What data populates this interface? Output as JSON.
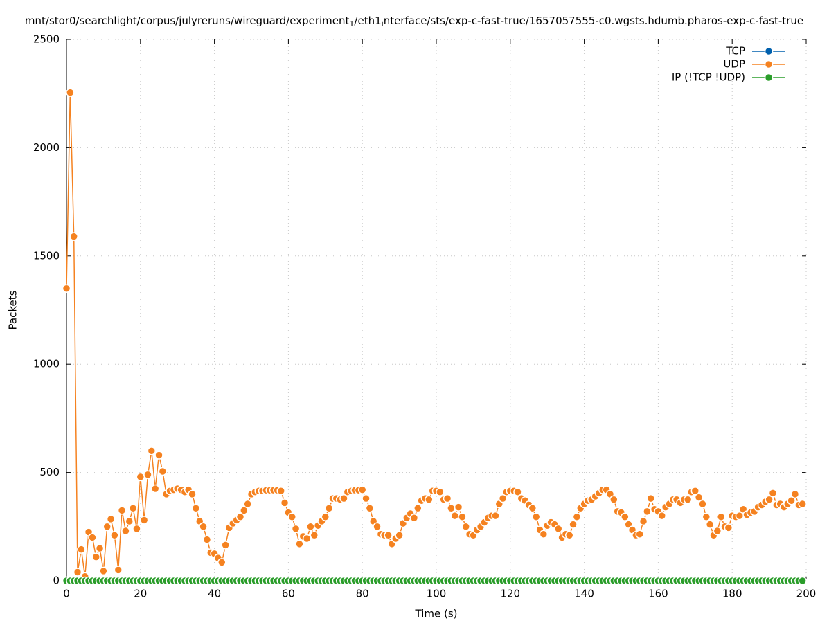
{
  "chart_data": {
    "type": "line",
    "title": [
      "mnt/stor0/searchlight/corpus/julyreruns/wireguard/experiment",
      "1",
      "/eth1",
      "i",
      "nterface/sts/exp-c-fast-true/1657057555-c0.wgsts.hdumb.pharos-exp-c-fast-true"
    ],
    "xlabel": "Time (s)",
    "ylabel": "Packets",
    "xlim": [
      0,
      200
    ],
    "xticks": [
      0,
      20,
      40,
      60,
      80,
      100,
      120,
      140,
      160,
      180,
      200
    ],
    "ylim": [
      0,
      2500
    ],
    "yticks": [
      0,
      500,
      1000,
      1500,
      2000,
      2500
    ],
    "grid": true,
    "legend": "top right",
    "x": [
      0,
      1,
      2,
      3,
      4,
      5,
      6,
      7,
      8,
      9,
      10,
      11,
      12,
      13,
      14,
      15,
      16,
      17,
      18,
      19,
      20,
      21,
      22,
      23,
      24,
      25,
      26,
      27,
      28,
      29,
      30,
      31,
      32,
      33,
      34,
      35,
      36,
      37,
      38,
      39,
      40,
      41,
      42,
      43,
      44,
      45,
      46,
      47,
      48,
      49,
      50,
      51,
      52,
      53,
      54,
      55,
      56,
      57,
      58,
      59,
      60,
      61,
      62,
      63,
      64,
      65,
      66,
      67,
      68,
      69,
      70,
      71,
      72,
      73,
      74,
      75,
      76,
      77,
      78,
      79,
      80,
      81,
      82,
      83,
      84,
      85,
      86,
      87,
      88,
      89,
      90,
      91,
      92,
      93,
      94,
      95,
      96,
      97,
      98,
      99,
      100,
      101,
      102,
      103,
      104,
      105,
      106,
      107,
      108,
      109,
      110,
      111,
      112,
      113,
      114,
      115,
      116,
      117,
      118,
      119,
      120,
      121,
      122,
      123,
      124,
      125,
      126,
      127,
      128,
      129,
      130,
      131,
      132,
      133,
      134,
      135,
      136,
      137,
      138,
      139,
      140,
      141,
      142,
      143,
      144,
      145,
      146,
      147,
      148,
      149,
      150,
      151,
      152,
      153,
      154,
      155,
      156,
      157,
      158,
      159,
      160,
      161,
      162,
      163,
      164,
      165,
      166,
      167,
      168,
      169,
      170,
      171,
      172,
      173,
      174,
      175,
      176,
      177,
      178,
      179,
      180,
      181,
      182,
      183,
      184,
      185,
      186,
      187,
      188,
      189,
      190,
      191,
      192,
      193,
      194,
      195,
      196,
      197,
      198,
      199
    ],
    "series": [
      {
        "name": "TCP",
        "color": "#0060ad",
        "values": [
          0,
          0,
          0,
          0,
          0,
          0,
          0,
          0,
          0,
          0,
          0,
          0,
          0,
          0,
          0,
          0,
          0,
          0,
          0,
          0,
          0,
          0,
          0,
          0,
          0,
          0,
          0,
          0,
          0,
          0,
          0,
          0,
          0,
          0,
          0,
          0,
          0,
          0,
          0,
          0,
          0,
          0,
          0,
          0,
          0,
          0,
          0,
          0,
          0,
          0,
          0,
          0,
          0,
          0,
          0,
          0,
          0,
          0,
          0,
          0,
          0,
          0,
          0,
          0,
          0,
          0,
          0,
          0,
          0,
          0,
          0,
          0,
          0,
          0,
          0,
          0,
          0,
          0,
          0,
          0,
          0,
          0,
          0,
          0,
          0,
          0,
          0,
          0,
          0,
          0,
          0,
          0,
          0,
          0,
          0,
          0,
          0,
          0,
          0,
          0,
          0,
          0,
          0,
          0,
          0,
          0,
          0,
          0,
          0,
          0,
          0,
          0,
          0,
          0,
          0,
          0,
          0,
          0,
          0,
          0,
          0,
          0,
          0,
          0,
          0,
          0,
          0,
          0,
          0,
          0,
          0,
          0,
          0,
          0,
          0,
          0,
          0,
          0,
          0,
          0,
          0,
          0,
          0,
          0,
          0,
          0,
          0,
          0,
          0,
          0,
          0,
          0,
          0,
          0,
          0,
          0,
          0,
          0,
          0,
          0,
          0,
          0,
          0,
          0,
          0,
          0,
          0,
          0,
          0,
          0,
          0,
          0,
          0,
          0,
          0,
          0,
          0,
          0,
          0,
          0,
          0,
          0,
          0,
          0,
          0,
          0,
          0,
          0,
          0,
          0,
          0,
          0,
          0,
          0,
          0,
          0,
          0,
          0,
          0,
          0
        ]
      },
      {
        "name": "UDP",
        "color": "#f58220",
        "values": [
          1350,
          2255,
          1590,
          40,
          145,
          20,
          225,
          200,
          110,
          150,
          45,
          250,
          285,
          210,
          50,
          325,
          230,
          275,
          335,
          240,
          480,
          280,
          490,
          600,
          425,
          580,
          505,
          400,
          415,
          420,
          425,
          420,
          410,
          420,
          400,
          335,
          275,
          250,
          190,
          130,
          125,
          105,
          85,
          165,
          245,
          265,
          280,
          295,
          325,
          355,
          400,
          410,
          415,
          415,
          418,
          418,
          418,
          418,
          415,
          360,
          315,
          295,
          240,
          170,
          205,
          195,
          250,
          210,
          255,
          275,
          295,
          335,
          380,
          380,
          375,
          380,
          410,
          415,
          418,
          418,
          420,
          380,
          335,
          275,
          250,
          215,
          210,
          210,
          170,
          195,
          210,
          265,
          290,
          310,
          290,
          335,
          370,
          380,
          375,
          415,
          415,
          410,
          375,
          380,
          335,
          300,
          340,
          295,
          250,
          215,
          210,
          235,
          250,
          270,
          290,
          300,
          300,
          355,
          380,
          410,
          415,
          415,
          410,
          380,
          370,
          350,
          335,
          295,
          235,
          215,
          255,
          270,
          260,
          240,
          200,
          215,
          210,
          260,
          295,
          335,
          355,
          370,
          375,
          390,
          405,
          420,
          420,
          400,
          375,
          320,
          315,
          295,
          260,
          235,
          210,
          215,
          275,
          320,
          380,
          330,
          320,
          300,
          340,
          355,
          375,
          375,
          360,
          375,
          375,
          410,
          415,
          385,
          355,
          295,
          260,
          210,
          230,
          295,
          250,
          245,
          300,
          295,
          300,
          330,
          305,
          315,
          320,
          340,
          350,
          365,
          375,
          405,
          350,
          355,
          340,
          355,
          370,
          400,
          350,
          355
        ]
      },
      {
        "name": "IP (!TCP  !UDP)",
        "color": "#2a9d2a",
        "values": [
          0,
          0,
          0,
          0,
          0,
          0,
          0,
          0,
          0,
          0,
          0,
          0,
          0,
          0,
          0,
          0,
          0,
          0,
          0,
          0,
          0,
          0,
          0,
          0,
          0,
          0,
          0,
          0,
          0,
          0,
          0,
          0,
          0,
          0,
          0,
          0,
          0,
          0,
          0,
          0,
          0,
          0,
          0,
          0,
          0,
          0,
          0,
          0,
          0,
          0,
          0,
          0,
          0,
          0,
          0,
          0,
          0,
          0,
          0,
          0,
          0,
          0,
          0,
          0,
          0,
          0,
          0,
          0,
          0,
          0,
          0,
          0,
          0,
          0,
          0,
          0,
          0,
          0,
          0,
          0,
          0,
          0,
          0,
          0,
          0,
          0,
          0,
          0,
          0,
          0,
          0,
          0,
          0,
          0,
          0,
          0,
          0,
          0,
          0,
          0,
          0,
          0,
          0,
          0,
          0,
          0,
          0,
          0,
          0,
          0,
          0,
          0,
          0,
          0,
          0,
          0,
          0,
          0,
          0,
          0,
          0,
          0,
          0,
          0,
          0,
          0,
          0,
          0,
          0,
          0,
          0,
          0,
          0,
          0,
          0,
          0,
          0,
          0,
          0,
          0,
          0,
          0,
          0,
          0,
          0,
          0,
          0,
          0,
          0,
          0,
          0,
          0,
          0,
          0,
          0,
          0,
          0,
          0,
          0,
          0,
          0,
          0,
          0,
          0,
          0,
          0,
          0,
          0,
          0,
          0,
          0,
          0,
          0,
          0,
          0,
          0,
          0,
          0,
          0,
          0,
          0,
          0,
          0,
          0,
          0,
          0,
          0,
          0,
          0,
          0,
          0,
          0,
          0,
          0,
          0,
          0,
          0,
          0,
          0,
          0
        ]
      }
    ]
  }
}
